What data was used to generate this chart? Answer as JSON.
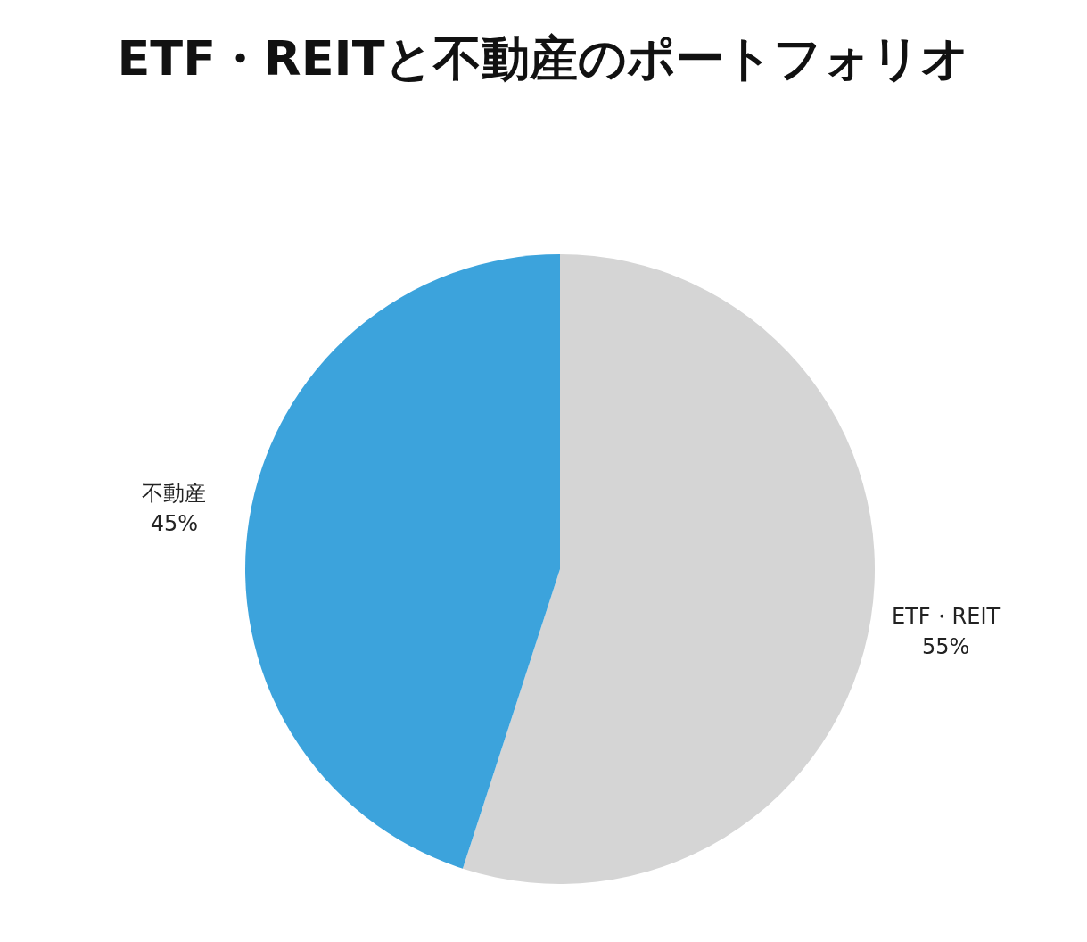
{
  "chart_data": {
    "type": "pie",
    "title": "ETF・REITと不動産のポートフォリオ",
    "categories": [
      "ETF・REIT",
      "不動産"
    ],
    "values": [
      55,
      45
    ],
    "colors": [
      "#d5d5d5",
      "#3ca3dc"
    ],
    "value_labels": [
      "55%",
      "45%"
    ]
  }
}
